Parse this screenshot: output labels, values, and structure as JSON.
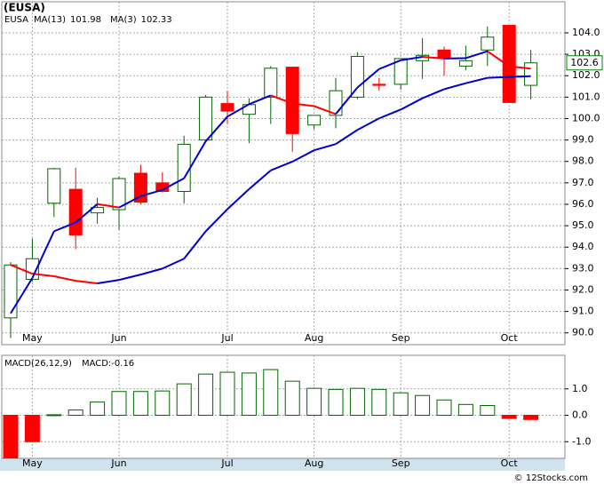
{
  "chart_data": [
    {
      "type": "candlestick",
      "title": "(EUSA)",
      "symbol": "EUSA",
      "categories": [
        null,
        "May",
        null,
        null,
        null,
        "Jun",
        null,
        null,
        null,
        null,
        "Jul",
        null,
        null,
        null,
        "Aug",
        null,
        null,
        null,
        "Sep",
        null,
        null,
        null,
        null,
        "Oct",
        null
      ],
      "open": [
        90.7,
        92.5,
        96.05,
        96.7,
        95.6,
        95.75,
        97.45,
        97.0,
        96.6,
        99.0,
        100.7,
        100.2,
        101.0,
        102.4,
        99.7,
        100.15,
        101.0,
        101.6,
        101.6,
        102.7,
        103.2,
        102.45,
        103.2,
        104.35,
        101.55
      ],
      "high": [
        93.3,
        94.4,
        97.7,
        97.7,
        96.3,
        97.3,
        97.85,
        97.5,
        99.2,
        101.1,
        101.3,
        100.95,
        102.45,
        102.4,
        100.15,
        101.9,
        103.1,
        101.9,
        102.8,
        103.75,
        103.35,
        103.4,
        104.3,
        104.35,
        103.2
      ],
      "low": [
        89.76,
        92.4,
        95.4,
        93.9,
        95.1,
        94.8,
        96.0,
        96.55,
        96.05,
        98.9,
        99.75,
        98.85,
        99.75,
        98.45,
        99.5,
        99.55,
        100.9,
        101.3,
        101.35,
        101.85,
        102.0,
        102.25,
        102.45,
        100.75,
        100.9
      ],
      "close": [
        93.17,
        93.46,
        97.66,
        94.57,
        95.85,
        97.2,
        96.1,
        96.6,
        98.8,
        101.0,
        100.35,
        100.65,
        102.35,
        99.3,
        100.15,
        101.3,
        102.9,
        101.55,
        102.8,
        102.95,
        102.8,
        102.7,
        103.8,
        100.75,
        102.6
      ],
      "price_label": "102.6",
      "up_color": "#006600",
      "down_color": "#ff0000",
      "symbol_color": "#008000",
      "series": [
        {
          "name": "MA(13)",
          "color": "#0000cc",
          "down_color": "#ff0000",
          "values": [
            93.17,
            92.76,
            92.64,
            92.43,
            92.31,
            92.47,
            92.72,
            93.0,
            93.46,
            94.74,
            95.77,
            96.71,
            97.58,
            97.99,
            98.52,
            98.81,
            99.47,
            100.01,
            100.42,
            100.95,
            101.37,
            101.65,
            101.9,
            101.94,
            101.98
          ]
        },
        {
          "name": "MA(3)",
          "color": "#0000cc",
          "down_color": "#ff0000",
          "values": [
            90.91,
            92.56,
            94.74,
            95.15,
            96.01,
            95.85,
            96.38,
            96.67,
            97.21,
            98.94,
            100.09,
            100.67,
            101.08,
            100.71,
            100.58,
            100.21,
            101.45,
            102.31,
            102.72,
            102.88,
            102.8,
            102.82,
            103.14,
            102.44,
            102.33
          ]
        }
      ],
      "ylim": [
        89.45,
        105.45
      ],
      "yticks": [
        {
          "value": 90,
          "label": "90.0"
        },
        {
          "value": 91,
          "label": "91.0"
        },
        {
          "value": 92,
          "label": "92.0"
        },
        {
          "value": 93,
          "label": "93.0"
        },
        {
          "value": 94,
          "label": "94.0"
        },
        {
          "value": 95,
          "label": "95.0"
        },
        {
          "value": 96,
          "label": "96.0"
        },
        {
          "value": 97,
          "label": "97.0"
        },
        {
          "value": 98,
          "label": "98.0"
        },
        {
          "value": 99,
          "label": "99.0"
        },
        {
          "value": 100,
          "label": "100.0"
        },
        {
          "value": 101,
          "label": "101.0"
        },
        {
          "value": 102,
          "label": "102.0"
        },
        {
          "value": 103,
          "label": "103.0"
        },
        {
          "value": 104,
          "label": "104.0"
        }
      ],
      "grid": true
    },
    {
      "type": "histogram-bars",
      "categories": [
        null,
        "May",
        null,
        null,
        null,
        "Jun",
        null,
        null,
        null,
        null,
        "Jul",
        null,
        null,
        null,
        "Aug",
        null,
        null,
        null,
        "Sep",
        null,
        null,
        null,
        null,
        "Oct",
        null
      ],
      "series": [
        {
          "name": "MACD(26,12,9)",
          "color": "#006600",
          "down_color": "#ff0000",
          "values": [
            -1.63,
            -1.0,
            0.02,
            0.2,
            0.5,
            0.9,
            0.9,
            0.92,
            1.19,
            1.56,
            1.63,
            1.6,
            1.73,
            1.29,
            1.02,
            0.98,
            1.02,
            0.98,
            0.85,
            0.75,
            0.58,
            0.41,
            0.37,
            -0.12,
            -0.16
          ]
        }
      ],
      "last_label": "MACD:-0.16",
      "ylim": [
        -1.63,
        2.27
      ],
      "yticks": [
        {
          "value": -1,
          "label": "-1.0"
        },
        {
          "value": 0,
          "label": "0.0"
        },
        {
          "value": 1,
          "label": "1.0"
        }
      ],
      "grid": true
    }
  ],
  "footer": "© 12Stocks.com"
}
